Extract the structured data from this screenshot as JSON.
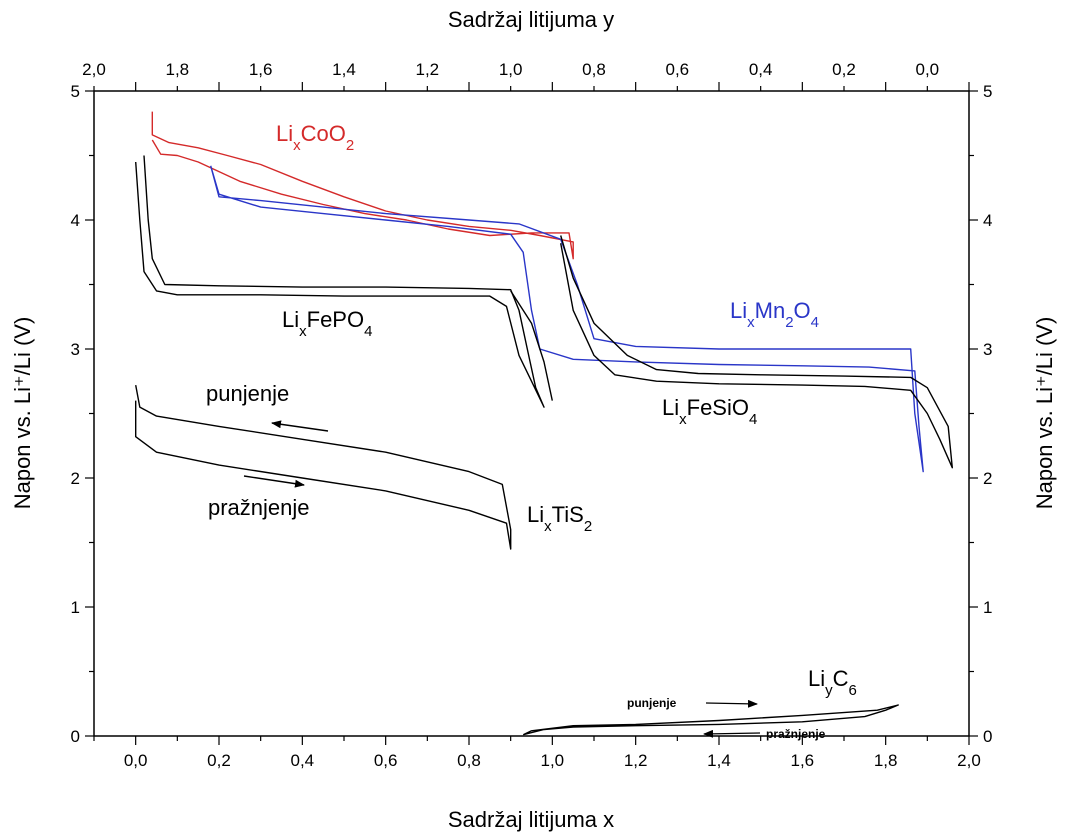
{
  "chart_data": {
    "type": "line",
    "title": "",
    "xlabel": "Sadržaj litijuma x",
    "x2label": "Sadržaj litijuma y",
    "ylabel": "Napon vs. Li⁺/Li (V)",
    "y2label": "Napon vs. Li⁺/Li (V)",
    "xlim": [
      -0.1,
      2.0
    ],
    "x2lim": [
      2.0,
      -0.1
    ],
    "ylim": [
      0,
      5
    ],
    "grid": false,
    "x_ticks": [
      "0,0",
      "0,2",
      "0,4",
      "0,6",
      "0,8",
      "1,0",
      "1,2",
      "1,4",
      "1,6",
      "1,8",
      "2,0"
    ],
    "x2_ticks": [
      "2,0",
      "1,8",
      "1,6",
      "1,4",
      "1,2",
      "1,0",
      "0,8",
      "0,6",
      "0,4",
      "0,2",
      "0,0"
    ],
    "y_ticks": [
      "0",
      "1",
      "2",
      "3",
      "4",
      "5"
    ],
    "series": [
      {
        "color": "#d42a2a",
        "label": "LixCoO2",
        "points": [
          [
            0.04,
            4.84
          ],
          [
            0.04,
            4.66
          ],
          [
            0.08,
            4.6
          ],
          [
            0.15,
            4.56
          ],
          [
            0.22,
            4.5
          ],
          [
            0.3,
            4.43
          ],
          [
            0.4,
            4.3
          ],
          [
            0.5,
            4.18
          ],
          [
            0.6,
            4.07
          ],
          [
            0.7,
            4.0
          ],
          [
            0.8,
            3.95
          ],
          [
            0.9,
            3.92
          ],
          [
            0.97,
            3.88
          ],
          [
            1.05,
            3.83
          ],
          [
            1.05,
            3.7
          ],
          [
            1.04,
            3.9
          ],
          [
            0.95,
            3.9
          ],
          [
            0.85,
            3.88
          ],
          [
            0.75,
            3.93
          ],
          [
            0.65,
            4.0
          ],
          [
            0.55,
            4.05
          ],
          [
            0.45,
            4.12
          ],
          [
            0.35,
            4.2
          ],
          [
            0.25,
            4.3
          ],
          [
            0.15,
            4.45
          ],
          [
            0.1,
            4.5
          ],
          [
            0.06,
            4.51
          ],
          [
            0.04,
            4.62
          ]
        ]
      },
      {
        "color": "#2a36c8",
        "label": "LixMn2O4",
        "points": [
          [
            0.18,
            4.42
          ],
          [
            0.2,
            4.2
          ],
          [
            0.3,
            4.1
          ],
          [
            0.45,
            4.05
          ],
          [
            0.6,
            4.0
          ],
          [
            0.75,
            3.95
          ],
          [
            0.9,
            3.89
          ],
          [
            0.93,
            3.75
          ],
          [
            0.95,
            3.3
          ],
          [
            0.97,
            3.0
          ],
          [
            1.05,
            2.92
          ],
          [
            1.2,
            2.9
          ],
          [
            1.4,
            2.88
          ],
          [
            1.6,
            2.87
          ],
          [
            1.76,
            2.86
          ],
          [
            1.87,
            2.83
          ],
          [
            1.88,
            2.4
          ],
          [
            1.89,
            2.05
          ],
          [
            1.87,
            2.5
          ],
          [
            1.86,
            3.0
          ],
          [
            1.8,
            3.0
          ],
          [
            1.6,
            3.0
          ],
          [
            1.4,
            3.0
          ],
          [
            1.2,
            3.02
          ],
          [
            1.1,
            3.08
          ],
          [
            1.06,
            3.5
          ],
          [
            1.02,
            3.85
          ],
          [
            0.92,
            3.97
          ],
          [
            0.8,
            4.0
          ],
          [
            0.6,
            4.05
          ],
          [
            0.45,
            4.1
          ],
          [
            0.3,
            4.15
          ],
          [
            0.2,
            4.18
          ],
          [
            0.18,
            4.42
          ]
        ]
      },
      {
        "color": "#000000",
        "label": "LixFePO4",
        "points": [
          [
            0.0,
            4.45
          ],
          [
            0.01,
            4.0
          ],
          [
            0.02,
            3.6
          ],
          [
            0.05,
            3.45
          ],
          [
            0.1,
            3.42
          ],
          [
            0.3,
            3.42
          ],
          [
            0.5,
            3.41
          ],
          [
            0.7,
            3.41
          ],
          [
            0.85,
            3.41
          ],
          [
            0.89,
            3.33
          ],
          [
            0.92,
            2.95
          ],
          [
            0.95,
            2.75
          ],
          [
            0.98,
            2.55
          ],
          [
            0.96,
            2.7
          ],
          [
            0.94,
            3.0
          ],
          [
            0.92,
            3.3
          ],
          [
            0.9,
            3.46
          ],
          [
            0.8,
            3.47
          ],
          [
            0.6,
            3.48
          ],
          [
            0.4,
            3.48
          ],
          [
            0.2,
            3.49
          ],
          [
            0.07,
            3.5
          ],
          [
            0.04,
            3.7
          ],
          [
            0.03,
            4.0
          ],
          [
            0.02,
            4.5
          ]
        ]
      },
      {
        "color": "#000000",
        "label": "LixFeSiO4",
        "points": [
          [
            1.02,
            3.82
          ],
          [
            1.05,
            3.3
          ],
          [
            1.1,
            2.95
          ],
          [
            1.15,
            2.8
          ],
          [
            1.25,
            2.75
          ],
          [
            1.4,
            2.73
          ],
          [
            1.6,
            2.72
          ],
          [
            1.75,
            2.71
          ],
          [
            1.86,
            2.68
          ],
          [
            1.9,
            2.5
          ],
          [
            1.93,
            2.3
          ],
          [
            1.96,
            2.08
          ],
          [
            1.95,
            2.4
          ],
          [
            1.9,
            2.7
          ],
          [
            1.86,
            2.78
          ],
          [
            1.7,
            2.79
          ],
          [
            1.5,
            2.8
          ],
          [
            1.35,
            2.81
          ],
          [
            1.25,
            2.84
          ],
          [
            1.18,
            2.95
          ],
          [
            1.1,
            3.2
          ],
          [
            1.05,
            3.55
          ],
          [
            1.02,
            3.88
          ]
        ]
      },
      {
        "color": "#000000",
        "label": "FePO4-tail",
        "points": [
          [
            0.9,
            3.45
          ],
          [
            0.95,
            3.2
          ],
          [
            0.98,
            2.9
          ],
          [
            1.0,
            2.6
          ]
        ]
      },
      {
        "color": "#000000",
        "label": "LixTiS2",
        "points": [
          [
            0.0,
            2.72
          ],
          [
            0.01,
            2.55
          ],
          [
            0.05,
            2.48
          ],
          [
            0.2,
            2.4
          ],
          [
            0.4,
            2.3
          ],
          [
            0.6,
            2.2
          ],
          [
            0.8,
            2.05
          ],
          [
            0.88,
            1.95
          ],
          [
            0.9,
            1.6
          ],
          [
            0.9,
            1.45
          ],
          [
            0.89,
            1.65
          ],
          [
            0.8,
            1.75
          ],
          [
            0.6,
            1.9
          ],
          [
            0.4,
            2.0
          ],
          [
            0.2,
            2.1
          ],
          [
            0.05,
            2.2
          ],
          [
            0.0,
            2.32
          ],
          [
            0.0,
            2.6
          ]
        ]
      },
      {
        "color": "#000000",
        "label": "LiyC6",
        "points": [
          [
            0.93,
            0.01
          ],
          [
            0.98,
            0.05
          ],
          [
            1.05,
            0.07
          ],
          [
            1.2,
            0.08
          ],
          [
            1.4,
            0.09
          ],
          [
            1.6,
            0.11
          ],
          [
            1.75,
            0.15
          ],
          [
            1.8,
            0.2
          ],
          [
            1.83,
            0.24
          ],
          [
            1.78,
            0.2
          ],
          [
            1.6,
            0.16
          ],
          [
            1.4,
            0.12
          ],
          [
            1.2,
            0.09
          ],
          [
            1.05,
            0.08
          ],
          [
            0.95,
            0.04
          ],
          [
            0.93,
            0.01
          ]
        ]
      }
    ],
    "annotations": {
      "coo2": "Li",
      "coo2_sub": "x",
      "coo2_rest": "CoO",
      "coo2_sub2": "2",
      "fepo4": "Li",
      "fepo4_sub": "x",
      "fepo4_rest": "FePO",
      "fepo4_sub2": "4",
      "mn2o4": "Li",
      "mn2o4_sub": "x",
      "mn2o4_rest": "Mn",
      "mn2o4_sub2": "2",
      "mn2o4_rest2": "O",
      "mn2o4_sub3": "4",
      "fesio4": "Li",
      "fesio4_sub": "x",
      "fesio4_rest": "FeSiO",
      "fesio4_sub2": "4",
      "tis2": "Li",
      "tis2_sub": "x",
      "tis2_rest": "TiS",
      "tis2_sub2": "2",
      "c6": "Li",
      "c6_sub": "y",
      "c6_rest": "C",
      "c6_sub2": "6",
      "punjenje": "punjenje",
      "praznjenje": "pražnjenje",
      "punjenje_small": "punjenje",
      "praznjenje_small": "pražnjenje"
    }
  }
}
